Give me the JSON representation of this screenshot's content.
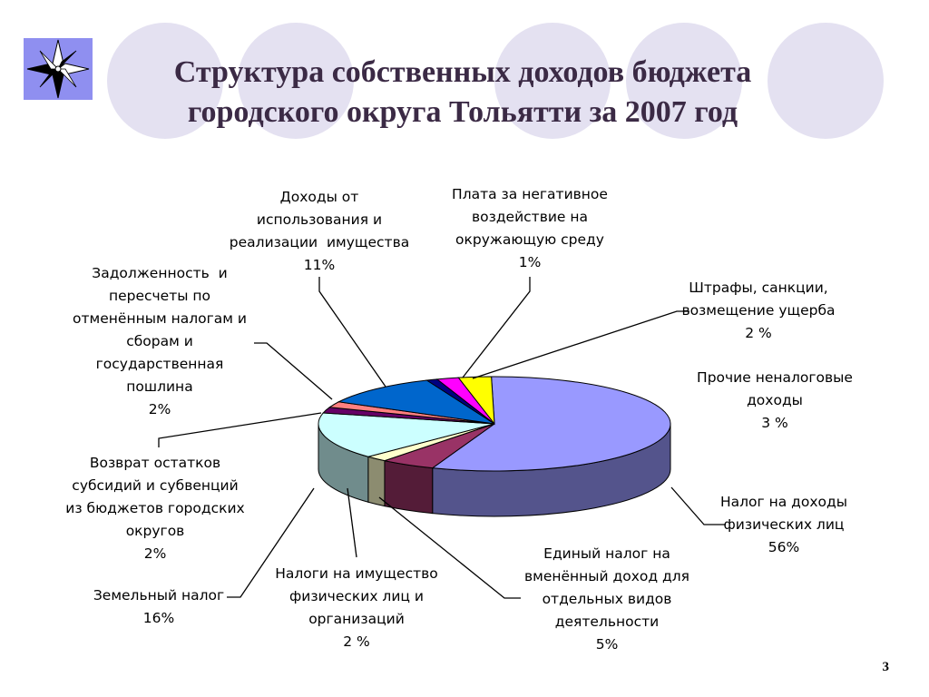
{
  "slide": {
    "title_line1": "Структура собственных доходов бюджета",
    "title_line2": "городского округа Тольятти за  2007 год",
    "page_number": "3",
    "logo_icon": "compass-rose-icon",
    "colors": {
      "title": "#3b2a45",
      "decor": "#e4e1f1",
      "logo_bg": "#8f8ff0"
    }
  },
  "chart_data": {
    "type": "pie",
    "title": "Структура собственных доходов бюджета городского округа Тольятти за  2007 год",
    "three_d": true,
    "legend": "none",
    "slices": [
      {
        "key": "ndfl",
        "label": "Налог на доходы\nфизических лиц\n56%",
        "value": 56,
        "color": "#9999ff"
      },
      {
        "key": "envd",
        "label": "Единый налог на\nвменённый доход для\nотдельных видов\nдеятельности\n5%",
        "value": 5,
        "color": "#993366"
      },
      {
        "key": "imush",
        "label": "Налоги на имущество\nфизических лиц и\nорганизаций\n2 %",
        "value": 2,
        "color": "#ffffcc"
      },
      {
        "key": "zem",
        "label": "Земельный налог\n16%",
        "value": 16,
        "color": "#ccffff"
      },
      {
        "key": "vozvrat",
        "label": "Возврат остатков\nсубсидий и субвенций\nиз бюджетов городских\nокругов\n2%",
        "value": 2,
        "color": "#660066"
      },
      {
        "key": "zadolzh",
        "label": "Задолженность  и\nпересчеты по\nотменённым налогам и\nсборам и\nгосударственная\nпошлина\n2%",
        "value": 2,
        "color": "#ff8080"
      },
      {
        "key": "dohody",
        "label": "Доходы от\nиспользования и\nреализации  имущества\n11%",
        "value": 11,
        "color": "#0066cc"
      },
      {
        "key": "plata",
        "label": "Плата за негативное\nвоздействие на\nокружающую среду\n1%",
        "value": 1,
        "color": "#000080"
      },
      {
        "key": "shtrafy",
        "label": "Штрафы, санкции,\nвозмещение ущерба\n2 %",
        "value": 2,
        "color": "#ff00ff"
      },
      {
        "key": "prochie",
        "label": "Прочие неналоговые\nдоходы\n3 %",
        "value": 3,
        "color": "#ffff00"
      }
    ]
  }
}
